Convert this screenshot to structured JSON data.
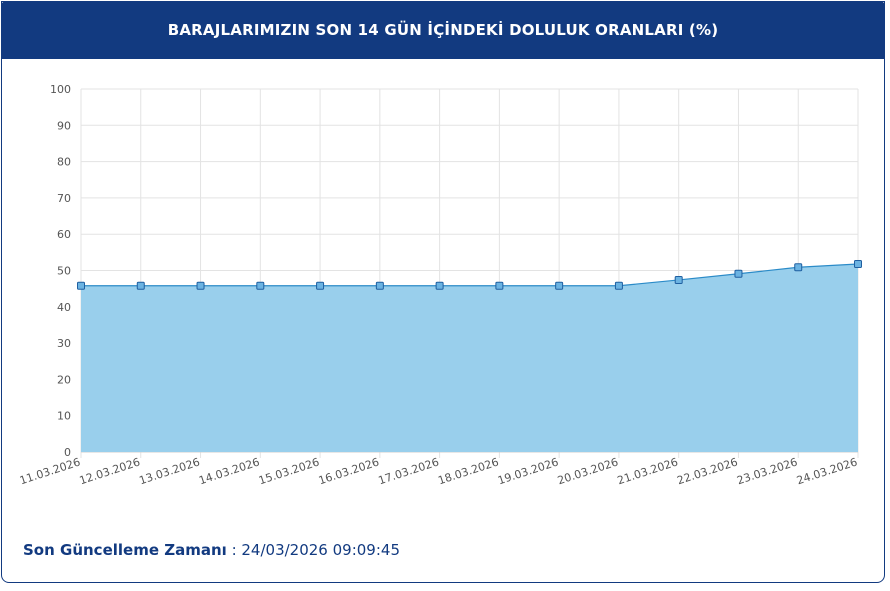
{
  "header": {
    "title": "BARAJLARIMIZIN SON 14 GÜN İÇİNDEKİ DOLULUK ORANLARI (%)"
  },
  "footer": {
    "label": "Son Güncelleme Zamanı",
    "separator": " : ",
    "value": "24/03/2026 09:09:45"
  },
  "colors": {
    "header_bg": "#123a80",
    "area_fill": "#99cfec",
    "line": "#2b8bc8",
    "marker_fill": "#6bb3e2",
    "marker_stroke": "#1f5fa0",
    "grid": "#e3e3e3"
  },
  "chart_data": {
    "type": "area",
    "title": "",
    "xlabel": "",
    "ylabel": "",
    "ylim": [
      0,
      100
    ],
    "yticks": [
      0,
      10,
      20,
      30,
      40,
      50,
      60,
      70,
      80,
      90,
      100
    ],
    "grid": true,
    "categories": [
      "11.03.2026",
      "12.03.2026",
      "13.03.2026",
      "14.03.2026",
      "15.03.2026",
      "16.03.2026",
      "17.03.2026",
      "18.03.2026",
      "19.03.2026",
      "20.03.2026",
      "21.03.2026",
      "22.03.2026",
      "23.03.2026",
      "24.03.2026"
    ],
    "series": [
      {
        "values": [
          45.8,
          45.8,
          45.8,
          45.8,
          45.8,
          45.8,
          45.8,
          45.8,
          45.8,
          45.8,
          47.4,
          49.1,
          50.9,
          51.8
        ]
      }
    ]
  }
}
